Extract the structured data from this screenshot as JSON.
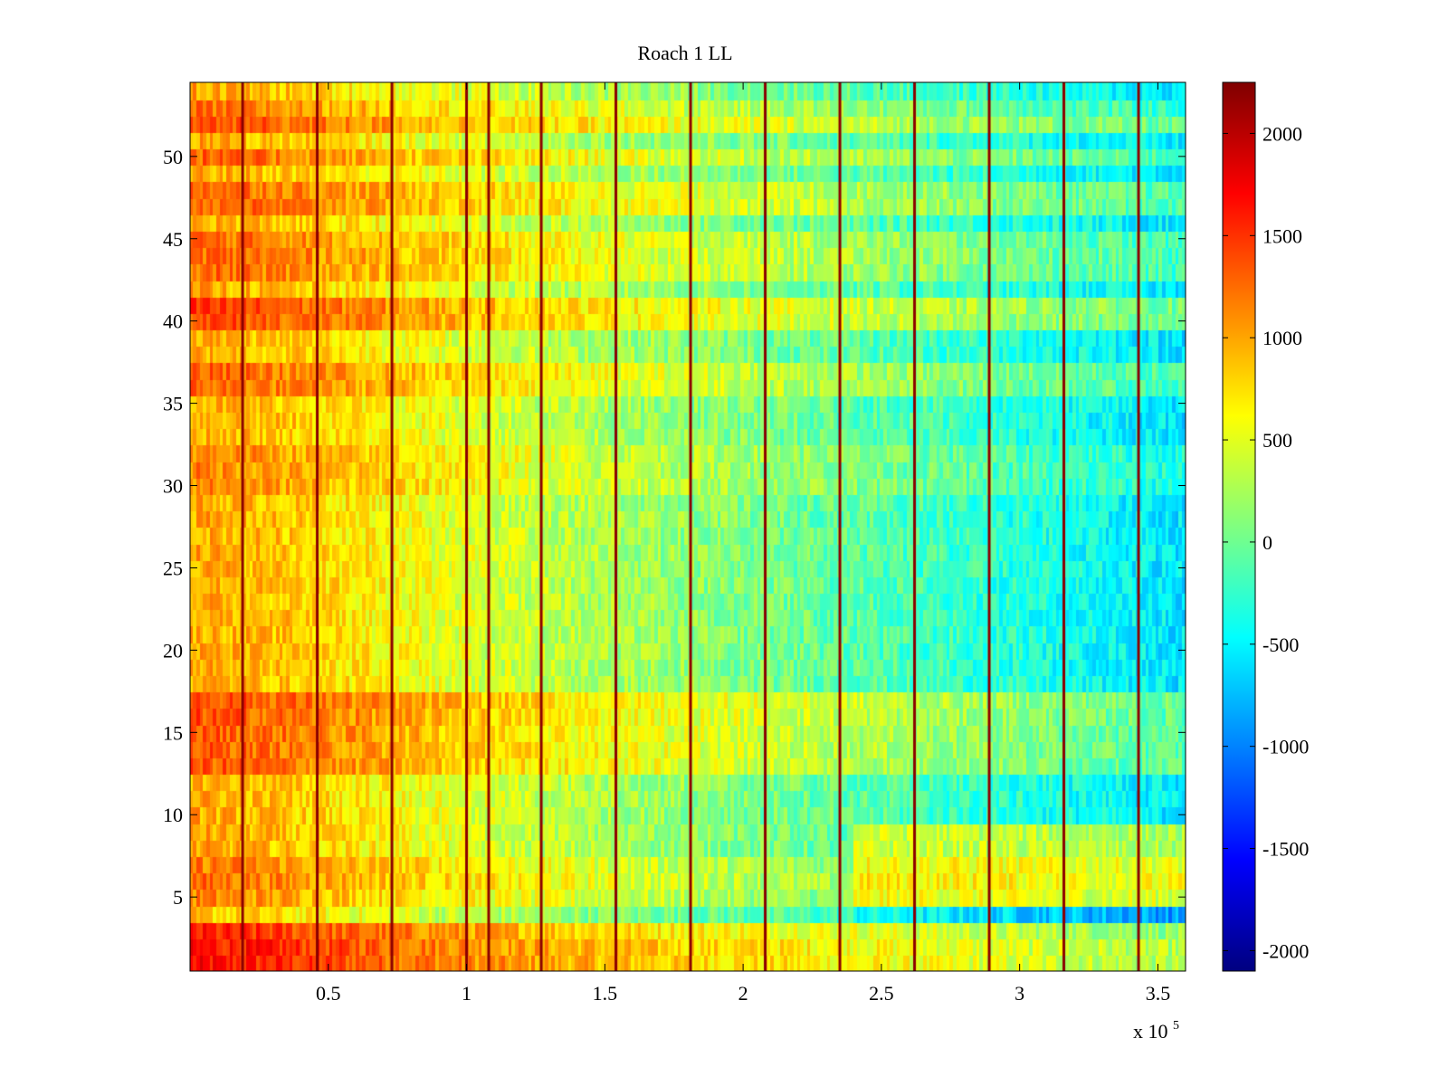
{
  "chart_data": {
    "type": "heatmap",
    "title": "Roach 1 LL",
    "xlabel": "",
    "ylabel": "",
    "x_multiplier_label": "x 10",
    "x_multiplier_exponent": "5",
    "xlim": [
      0,
      3.6
    ],
    "ylim": [
      0.5,
      54.5
    ],
    "n_rows": 54,
    "n_cols": 300,
    "x_ticks": [
      0.5,
      1,
      1.5,
      2,
      2.5,
      3,
      3.5
    ],
    "x_tick_labels": [
      "0.5",
      "1",
      "1.5",
      "2",
      "2.5",
      "3",
      "3.5"
    ],
    "y_ticks": [
      5,
      10,
      15,
      20,
      25,
      30,
      35,
      40,
      45,
      50
    ],
    "y_tick_labels": [
      "5",
      "10",
      "15",
      "20",
      "25",
      "30",
      "35",
      "40",
      "45",
      "50"
    ],
    "colorbar": {
      "colormap": "jet",
      "clim": [
        -2100,
        2250
      ],
      "ticks": [
        2000,
        1500,
        1000,
        500,
        0,
        -500,
        -1000,
        -1500,
        -2000
      ],
      "tick_labels": [
        "2000",
        "1500",
        "1000",
        "500",
        "0",
        "-500",
        "-1000",
        "-1500",
        "-2000"
      ]
    },
    "trend": {
      "x": [
        0.0,
        0.3,
        0.6,
        0.9,
        1.2,
        1.5,
        1.8,
        2.1,
        2.4,
        2.7,
        3.0,
        3.3,
        3.6
      ],
      "mean_value": [
        1000,
        880,
        700,
        530,
        380,
        250,
        140,
        40,
        -80,
        -200,
        -320,
        -450,
        -560
      ]
    },
    "row_offsets": [
      {
        "row": 1,
        "offset": 650
      },
      {
        "row": 2,
        "offset": 650
      },
      {
        "row": 3,
        "offset": 550
      },
      {
        "row": 4,
        "offset": -150
      },
      {
        "row": 5,
        "offset": 150
      },
      {
        "row": 6,
        "offset": 250
      },
      {
        "row": 7,
        "offset": 200
      },
      {
        "row": 13,
        "offset": 350
      },
      {
        "row": 14,
        "offset": 350
      },
      {
        "row": 15,
        "offset": 350
      },
      {
        "row": 16,
        "offset": 380
      },
      {
        "row": 17,
        "offset": 420
      },
      {
        "row": 30,
        "offset": 150
      },
      {
        "row": 31,
        "offset": 150
      },
      {
        "row": 32,
        "offset": 150
      },
      {
        "row": 36,
        "offset": 280
      },
      {
        "row": 37,
        "offset": 300
      },
      {
        "row": 40,
        "offset": 420
      },
      {
        "row": 41,
        "offset": 450
      },
      {
        "row": 43,
        "offset": 280
      },
      {
        "row": 44,
        "offset": 300
      },
      {
        "row": 45,
        "offset": 280
      },
      {
        "row": 47,
        "offset": 330
      },
      {
        "row": 48,
        "offset": 330
      },
      {
        "row": 50,
        "offset": 300
      },
      {
        "row": 52,
        "offset": 400
      },
      {
        "row": 53,
        "offset": 220
      }
    ],
    "late_warm_rows": [
      5,
      6,
      7,
      8,
      9
    ],
    "spike_columns_x": [
      0.19,
      0.46,
      0.73,
      1.0,
      1.08,
      1.27,
      1.54,
      1.81,
      2.08,
      2.35,
      2.62,
      2.89,
      3.16,
      3.43
    ]
  }
}
